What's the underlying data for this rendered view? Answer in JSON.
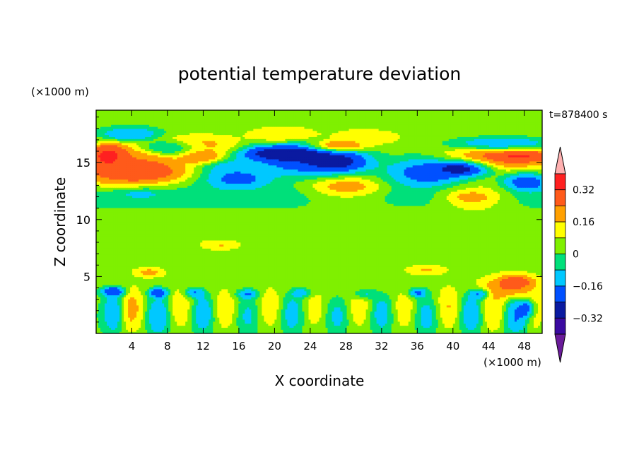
{
  "chart_data": {
    "type": "heatmap",
    "title": "potential temperature deviation",
    "xlabel": "X coordinate",
    "ylabel": "Z coordinate",
    "x_unit": "(×1000 m)",
    "y_unit": "(×1000 m)",
    "time_label": "t=878400 s",
    "xlim": [
      0,
      50
    ],
    "ylim": [
      0,
      19.6
    ],
    "x_ticks": [
      4,
      8,
      12,
      16,
      20,
      24,
      28,
      32,
      36,
      40,
      44,
      48
    ],
    "y_ticks": [
      5,
      10,
      15
    ],
    "colorbar": {
      "levels": [
        -0.4,
        -0.32,
        -0.24,
        -0.16,
        -0.08,
        0,
        0.08,
        0.16,
        0.24,
        0.32,
        0.4
      ],
      "tick_labels": [
        "0.32",
        "0.16",
        "0",
        "−0.16",
        "−0.32"
      ],
      "tick_values": [
        0.32,
        0.16,
        0,
        -0.16,
        -0.32
      ],
      "colors": [
        "#6a1b9a",
        "#3a0aa0",
        "#0a1aa0",
        "#0050ff",
        "#00c8ff",
        "#00e07a",
        "#7ff000",
        "#ffff00",
        "#ffa000",
        "#ff5a1a",
        "#ff2020",
        "#ffb0b0"
      ]
    },
    "field_description": "Layered anomalies: warm (pink/red) bands near z=12-16 km, cold (purple/blue) bands near z=13-16 km, near-neutral (green) mid levels, oscillating warm/cold cells below z=4 km.",
    "blobs": [
      {
        "x": 25,
        "z": 10,
        "rx": 30,
        "rz": 9,
        "v": 0.04
      },
      {
        "x": 25,
        "z": 6,
        "rx": 30,
        "rz": 3,
        "v": 0.08
      },
      {
        "x": 25,
        "z": 2,
        "rx": 30,
        "rz": 2,
        "v": 0.0
      },
      {
        "x": 25,
        "z": 12,
        "rx": 30,
        "rz": 1.2,
        "v": -0.12
      },
      {
        "x": 25,
        "z": 18.7,
        "rx": 30,
        "rz": 1.2,
        "v": 0.02
      },
      {
        "x": 4,
        "z": 14.5,
        "rx": 6,
        "rz": 1.8,
        "v": 0.3
      },
      {
        "x": 5,
        "z": 14.2,
        "rx": 4.5,
        "rz": 0.9,
        "v": 0.42
      },
      {
        "x": 1.5,
        "z": 15.5,
        "rx": 2,
        "rz": 1.0,
        "v": 0.42
      },
      {
        "x": 12,
        "z": 16.5,
        "rx": 4,
        "rz": 1.0,
        "v": 0.22
      },
      {
        "x": 8.5,
        "z": 16.3,
        "rx": 3,
        "rz": 0.6,
        "v": -0.2
      },
      {
        "x": 4,
        "z": 17.6,
        "rx": 3,
        "rz": 0.6,
        "v": -0.2
      },
      {
        "x": 12,
        "z": 15.5,
        "rx": 2.5,
        "rz": 0.6,
        "v": 0.32
      },
      {
        "x": 16,
        "z": 13.5,
        "rx": 4,
        "rz": 1.0,
        "v": -0.35
      },
      {
        "x": 15,
        "z": 14.6,
        "rx": 3,
        "rz": 0.8,
        "v": -0.2
      },
      {
        "x": 23,
        "z": 15.2,
        "rx": 6,
        "rz": 1.6,
        "v": -0.35
      },
      {
        "x": 27,
        "z": 15.0,
        "rx": 4,
        "rz": 1.0,
        "v": -0.44
      },
      {
        "x": 21,
        "z": 15.8,
        "rx": 5,
        "rz": 0.7,
        "v": -0.44
      },
      {
        "x": 21,
        "z": 17.6,
        "rx": 4,
        "rz": 0.8,
        "v": 0.24
      },
      {
        "x": 30,
        "z": 17.4,
        "rx": 4,
        "rz": 0.8,
        "v": 0.18
      },
      {
        "x": 27,
        "z": 16.5,
        "rx": 3,
        "rz": 0.5,
        "v": 0.42
      },
      {
        "x": 28,
        "z": 12.4,
        "rx": 5,
        "rz": 1.4,
        "v": 0.3
      },
      {
        "x": 28,
        "z": 12.8,
        "rx": 3.5,
        "rz": 0.7,
        "v": 0.42
      },
      {
        "x": 37,
        "z": 14.0,
        "rx": 5,
        "rz": 1.4,
        "v": -0.35
      },
      {
        "x": 41,
        "z": 14.6,
        "rx": 3,
        "rz": 0.7,
        "v": -0.44
      },
      {
        "x": 42,
        "z": 12.0,
        "rx": 4.5,
        "rz": 1.2,
        "v": 0.3
      },
      {
        "x": 42,
        "z": 12.0,
        "rx": 2.5,
        "rz": 0.5,
        "v": 0.42
      },
      {
        "x": 45,
        "z": 15.5,
        "rx": 6,
        "rz": 1.0,
        "v": 0.3
      },
      {
        "x": 47,
        "z": 15.6,
        "rx": 3.5,
        "rz": 0.5,
        "v": 0.42
      },
      {
        "x": 45,
        "z": 16.6,
        "rx": 5,
        "rz": 0.6,
        "v": -0.2
      },
      {
        "x": 48,
        "z": 13.2,
        "rx": 2.5,
        "rz": 0.8,
        "v": -0.3
      },
      {
        "x": 5,
        "z": 12.3,
        "rx": 3,
        "rz": 0.5,
        "v": -0.18
      },
      {
        "x": 14,
        "z": 7.8,
        "rx": 2,
        "rz": 0.4,
        "v": 0.3
      },
      {
        "x": 6,
        "z": 5.4,
        "rx": 1.5,
        "rz": 0.4,
        "v": 0.3
      },
      {
        "x": 37,
        "z": 5.6,
        "rx": 2,
        "rz": 0.4,
        "v": 0.3
      },
      {
        "x": 46,
        "z": 4.0,
        "rx": 3,
        "rz": 1.0,
        "v": 0.34
      },
      {
        "x": 47,
        "z": 4.6,
        "rx": 2,
        "rz": 0.6,
        "v": 0.42
      },
      {
        "x": 12,
        "z": 9.0,
        "rx": 3,
        "rz": 1.5,
        "v": 0.1
      },
      {
        "x": 33,
        "z": 9.5,
        "rx": 4,
        "rz": 1.5,
        "v": 0.1
      },
      {
        "x": 2,
        "z": 2.0,
        "rx": 1.2,
        "rz": 1.4,
        "v": -0.25
      },
      {
        "x": 4,
        "z": 2.2,
        "rx": 1.4,
        "rz": 1.6,
        "v": 0.3
      },
      {
        "x": 7,
        "z": 1.8,
        "rx": 1.3,
        "rz": 1.4,
        "v": -0.28
      },
      {
        "x": 9.5,
        "z": 2.3,
        "rx": 1.4,
        "rz": 1.6,
        "v": 0.25
      },
      {
        "x": 12,
        "z": 2.0,
        "rx": 1.3,
        "rz": 1.5,
        "v": -0.3
      },
      {
        "x": 14.5,
        "z": 2.2,
        "rx": 1.4,
        "rz": 1.6,
        "v": 0.28
      },
      {
        "x": 17,
        "z": 1.8,
        "rx": 1.3,
        "rz": 1.4,
        "v": -0.22
      },
      {
        "x": 19.5,
        "z": 2.3,
        "rx": 1.4,
        "rz": 1.6,
        "v": 0.3
      },
      {
        "x": 22,
        "z": 2.0,
        "rx": 1.3,
        "rz": 1.5,
        "v": -0.32
      },
      {
        "x": 24.5,
        "z": 2.2,
        "rx": 1.4,
        "rz": 1.6,
        "v": 0.26
      },
      {
        "x": 27,
        "z": 1.8,
        "rx": 1.3,
        "rz": 1.4,
        "v": -0.25
      },
      {
        "x": 29.5,
        "z": 2.3,
        "rx": 1.4,
        "rz": 1.6,
        "v": 0.3
      },
      {
        "x": 32,
        "z": 2.0,
        "rx": 1.3,
        "rz": 1.5,
        "v": -0.3
      },
      {
        "x": 34.5,
        "z": 2.2,
        "rx": 1.4,
        "rz": 1.6,
        "v": 0.26
      },
      {
        "x": 37,
        "z": 1.8,
        "rx": 1.3,
        "rz": 1.4,
        "v": -0.24
      },
      {
        "x": 39.5,
        "z": 2.3,
        "rx": 1.4,
        "rz": 1.6,
        "v": 0.3
      },
      {
        "x": 42,
        "z": 2.0,
        "rx": 1.3,
        "rz": 1.5,
        "v": -0.28
      },
      {
        "x": 44.5,
        "z": 2.2,
        "rx": 1.4,
        "rz": 1.6,
        "v": 0.26
      },
      {
        "x": 47,
        "z": 1.8,
        "rx": 1.3,
        "rz": 1.4,
        "v": -0.26
      },
      {
        "x": 49.2,
        "z": 2.2,
        "rx": 1.0,
        "rz": 1.4,
        "v": 0.22
      },
      {
        "x": 2,
        "z": 3.7,
        "rx": 1.4,
        "rz": 0.5,
        "v": -0.36
      },
      {
        "x": 7,
        "z": 3.6,
        "rx": 1.2,
        "rz": 0.5,
        "v": -0.4
      },
      {
        "x": 11,
        "z": 3.6,
        "rx": 1.2,
        "rz": 0.5,
        "v": -0.34
      },
      {
        "x": 17,
        "z": 3.5,
        "rx": 1.4,
        "rz": 0.5,
        "v": -0.38
      },
      {
        "x": 23,
        "z": 3.6,
        "rx": 1.2,
        "rz": 0.5,
        "v": -0.36
      },
      {
        "x": 30,
        "z": 3.5,
        "rx": 1.4,
        "rz": 0.5,
        "v": -0.32
      },
      {
        "x": 36,
        "z": 3.6,
        "rx": 1.2,
        "rz": 0.5,
        "v": -0.4
      },
      {
        "x": 43,
        "z": 3.5,
        "rx": 1.2,
        "rz": 0.5,
        "v": -0.36
      },
      {
        "x": 48.5,
        "z": 2.2,
        "rx": 1.0,
        "rz": 0.8,
        "v": -0.44
      }
    ]
  }
}
